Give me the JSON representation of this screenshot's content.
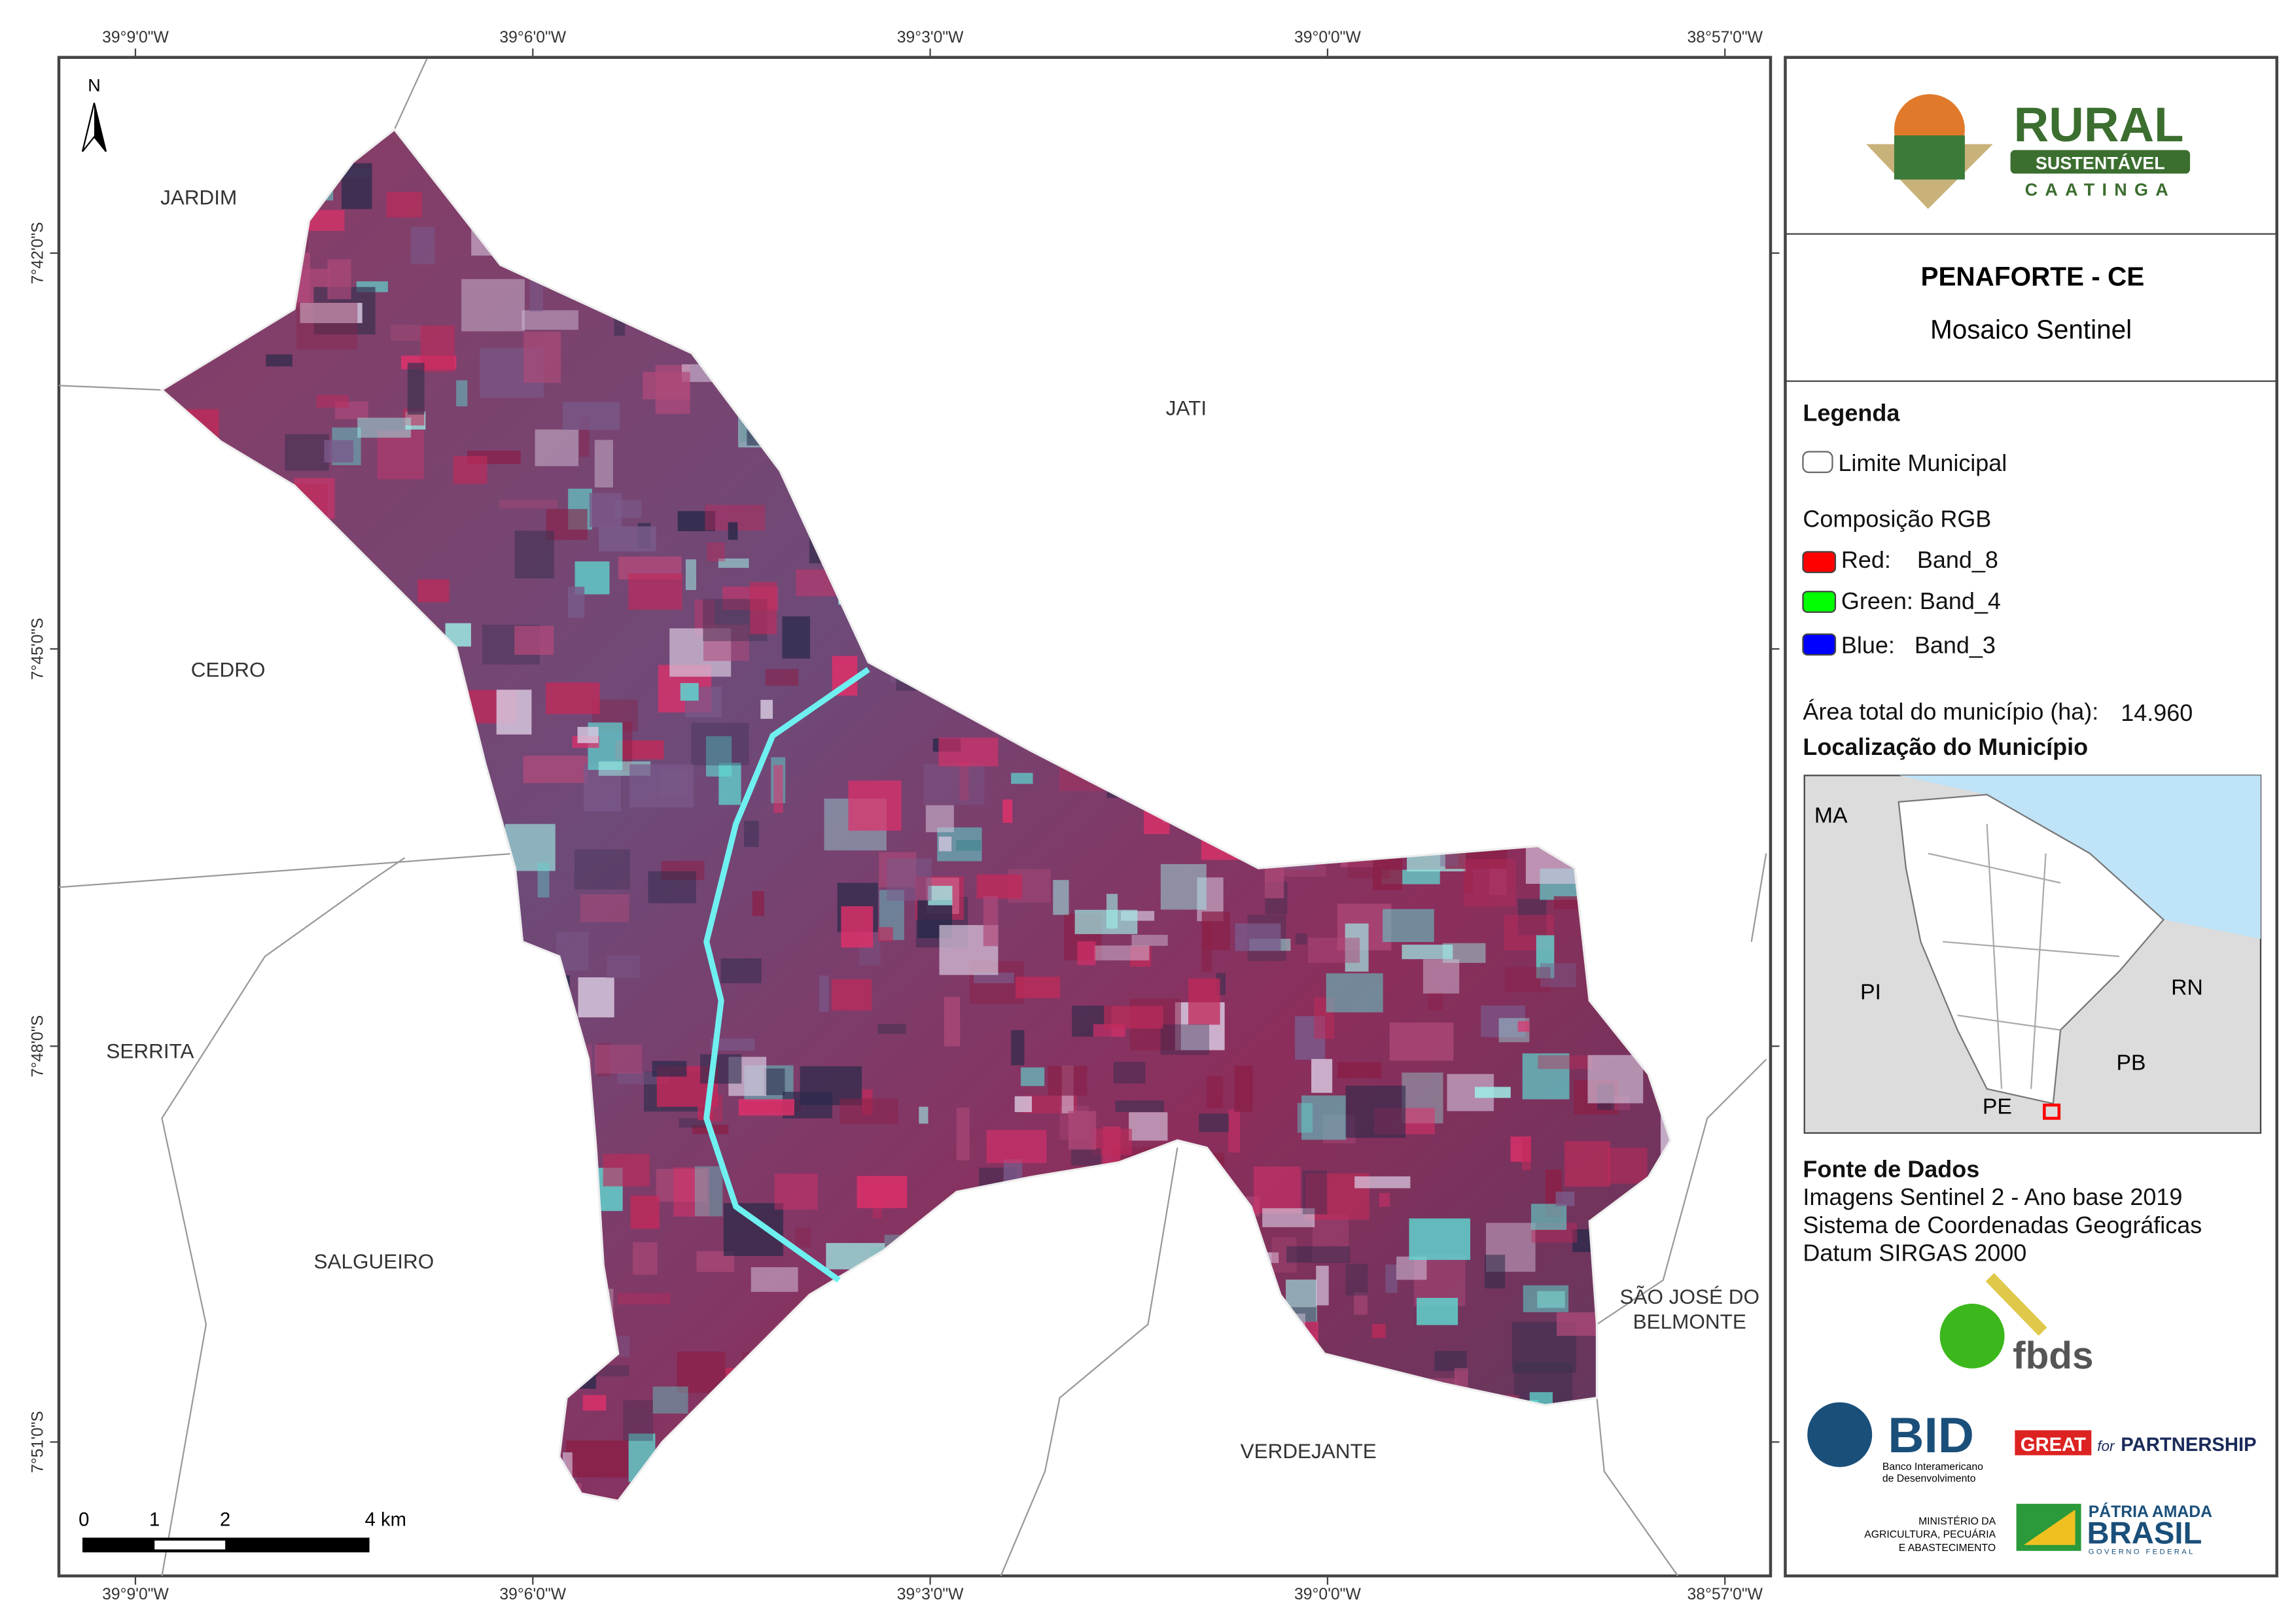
{
  "grid_labels": {
    "longitudes": [
      "39°9'0\"W",
      "39°6'0\"W",
      "39°3'0\"W",
      "39°0'0\"W",
      "38°57'0\"W"
    ],
    "latitudes": [
      "7°42'0\"S",
      "7°45'0\"S",
      "7°48'0\"S",
      "7°51'0\"S"
    ]
  },
  "map": {
    "north": "N",
    "places": [
      "JARDIM",
      "CEDRO",
      "SERRITA",
      "SALGUEIRO",
      "JATI",
      "VERDEJANTE",
      "SÃO JOSÉ DO",
      "BELMONTE"
    ],
    "scale": [
      "0",
      "1",
      "2",
      "4 km"
    ]
  },
  "logo": {
    "line1": "RURAL",
    "line2": "SUSTENTÁVEL",
    "line3": "CAATINGA"
  },
  "header": {
    "title": "PENAFORTE - CE",
    "subtitle": "Mosaico Sentinel"
  },
  "legend": {
    "title": "Legenda",
    "boundary": "Limite Municipal",
    "rgb_title": "Composição RGB",
    "red": "Red:    Band_8",
    "green": "Green: Band_4",
    "blue": "Blue:   Band_3",
    "area_label": "Área total do município (ha):",
    "area_value": "14.960"
  },
  "location": {
    "title": "Localização do Município",
    "states": [
      "MA",
      "PI",
      "RN",
      "PB",
      "PE"
    ]
  },
  "sources": {
    "title": "Fonte de Dados",
    "lines": [
      "Imagens Sentinel 2 - Ano base 2019",
      "Sistema de Coordenadas Geográficas",
      "Datum SIRGAS 2000"
    ]
  },
  "partners": {
    "fbds": "fbds",
    "bid": "BID",
    "bid_name": [
      "Banco Interamericano",
      "de Desenvolvimento"
    ],
    "great": "GREAT",
    "for": "for",
    "partnership": "PARTNERSHIP",
    "ministry": [
      "MINISTÉRIO DA",
      "AGRICULTURA, PECUÁRIA",
      "E ABASTECIMENTO"
    ],
    "patria": "PÁTRIA AMADA",
    "brasil": "BRASIL",
    "governo": "GOVERNO FEDERAL"
  }
}
